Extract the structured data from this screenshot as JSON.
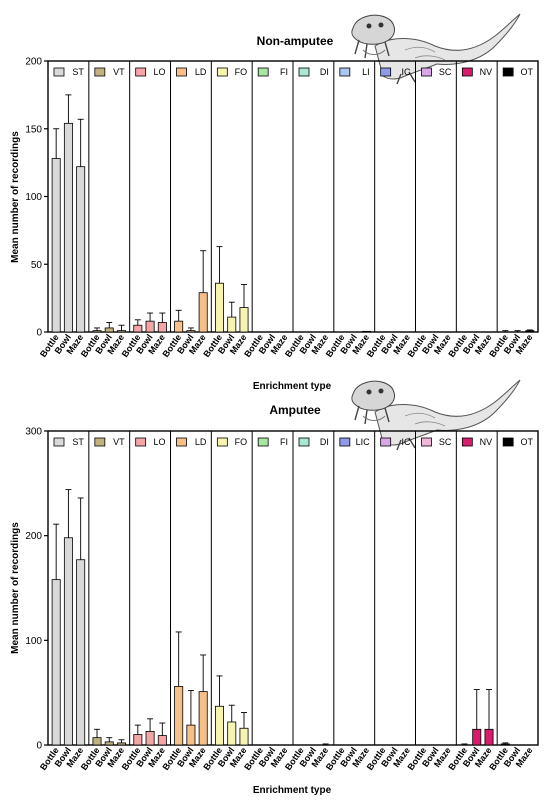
{
  "chart_data": [
    {
      "type": "bar",
      "title": "Non-amputee",
      "xlabel": "Enrichment type",
      "ylabel": "Mean number of recordings",
      "ylim": [
        0,
        200
      ],
      "yticks": [
        0,
        50,
        100,
        150,
        200
      ],
      "categories": [
        "Bottle",
        "Bowl",
        "Maze"
      ],
      "series": [
        {
          "name": "ST",
          "color": "#d9d9d9",
          "values": [
            128,
            154,
            122
          ],
          "errors": [
            22,
            21,
            35
          ]
        },
        {
          "name": "VT",
          "color": "#c2b280",
          "values": [
            1,
            3,
            1
          ],
          "errors": [
            2,
            4,
            4
          ]
        },
        {
          "name": "LO",
          "color": "#f4a6a6",
          "values": [
            5,
            8,
            7
          ],
          "errors": [
            4,
            6,
            7
          ]
        },
        {
          "name": "LD",
          "color": "#f7c08a",
          "values": [
            8,
            1,
            29
          ],
          "errors": [
            8,
            2,
            31
          ]
        },
        {
          "name": "FO",
          "color": "#f7f4b0",
          "values": [
            36,
            11,
            18
          ],
          "errors": [
            27,
            11,
            17
          ]
        },
        {
          "name": "FI",
          "color": "#a8e6a3",
          "values": [
            0,
            0,
            0
          ],
          "errors": [
            0,
            0,
            0
          ]
        },
        {
          "name": "DI",
          "color": "#a9e6d6",
          "values": [
            0,
            0,
            0
          ],
          "errors": [
            0,
            0,
            0
          ]
        },
        {
          "name": "LI",
          "color": "#a8c8f0",
          "values": [
            0,
            0,
            0.5
          ],
          "errors": [
            0,
            0,
            0
          ]
        },
        {
          "name": "IC",
          "color": "#8f9be8",
          "values": [
            0,
            0,
            0
          ],
          "errors": [
            0,
            0,
            0
          ]
        },
        {
          "name": "SC",
          "color": "#d9a6e8",
          "values": [
            0,
            0,
            0
          ],
          "errors": [
            0,
            0,
            0
          ]
        },
        {
          "name": "NV",
          "color": "#d81b6a",
          "values": [
            0,
            0,
            0
          ],
          "errors": [
            0,
            0,
            0
          ]
        },
        {
          "name": "OT",
          "color": "#000000",
          "values": [
            0,
            0,
            1
          ],
          "errors": [
            1,
            1,
            0.5
          ]
        }
      ]
    },
    {
      "type": "bar",
      "title": "Amputee",
      "xlabel": "Enrichment type",
      "ylabel": "Mean number of recordings",
      "ylim": [
        0,
        300
      ],
      "yticks": [
        0,
        100,
        200,
        300
      ],
      "categories": [
        "Bottle",
        "Bowl",
        "Maze"
      ],
      "series": [
        {
          "name": "ST",
          "color": "#d9d9d9",
          "values": [
            158,
            198,
            177
          ],
          "errors": [
            53,
            46,
            59
          ]
        },
        {
          "name": "VT",
          "color": "#c2b280",
          "values": [
            7,
            3,
            2
          ],
          "errors": [
            8,
            4,
            3
          ]
        },
        {
          "name": "LO",
          "color": "#f4a6a6",
          "values": [
            10,
            13,
            9
          ],
          "errors": [
            9,
            12,
            12
          ]
        },
        {
          "name": "LD",
          "color": "#f7c08a",
          "values": [
            56,
            19,
            51
          ],
          "errors": [
            52,
            33,
            35
          ]
        },
        {
          "name": "FO",
          "color": "#f7f4b0",
          "values": [
            37,
            22,
            16
          ],
          "errors": [
            29,
            16,
            15
          ]
        },
        {
          "name": "FI",
          "color": "#a8e6a3",
          "values": [
            0,
            0,
            0
          ],
          "errors": [
            0,
            0,
            0
          ]
        },
        {
          "name": "DI",
          "color": "#a9e6d6",
          "values": [
            0,
            0,
            0
          ],
          "errors": [
            0,
            0,
            1
          ]
        },
        {
          "name": "LIC",
          "color": "#8f9be8",
          "values": [
            0,
            0,
            0
          ],
          "errors": [
            0,
            0,
            0
          ]
        },
        {
          "name": "IC",
          "color": "#d9a6e8",
          "values": [
            0,
            0,
            0
          ],
          "errors": [
            0,
            0,
            0
          ]
        },
        {
          "name": "SC",
          "color": "#f0b8d8",
          "values": [
            0,
            0,
            0
          ],
          "errors": [
            0,
            0,
            0
          ]
        },
        {
          "name": "NV",
          "color": "#d81b6a",
          "values": [
            0,
            15,
            15
          ],
          "errors": [
            1,
            38,
            38
          ]
        },
        {
          "name": "OT",
          "color": "#000000",
          "values": [
            1,
            0,
            0
          ],
          "errors": [
            1,
            0,
            0
          ]
        }
      ]
    }
  ]
}
